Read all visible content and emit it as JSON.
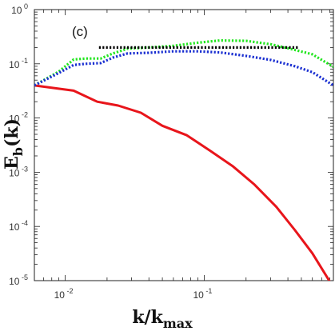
{
  "chart_data": {
    "type": "line",
    "panel_label": "(c)",
    "xlabel": {
      "base": "k/k",
      "sub": "max"
    },
    "ylabel": {
      "base": "E",
      "sub": "b",
      "tail": "(k)"
    },
    "x_scale": "log",
    "y_scale": "log",
    "xlim": [
      0.006,
      0.85
    ],
    "ylim": [
      1e-05,
      1
    ],
    "x_ticks": [
      {
        "value": 0.01,
        "base": "10",
        "exp": "-2"
      },
      {
        "value": 0.1,
        "base": "10",
        "exp": "-1"
      }
    ],
    "y_ticks": [
      {
        "value": 1,
        "base": "10",
        "exp": "0"
      },
      {
        "value": 0.1,
        "base": "10",
        "exp": "-1"
      },
      {
        "value": 0.01,
        "base": "10",
        "exp": "-2"
      },
      {
        "value": 0.001,
        "base": "10",
        "exp": "-3"
      },
      {
        "value": 0.0001,
        "base": "10",
        "exp": "-4"
      },
      {
        "value": 1e-05,
        "base": "10",
        "exp": "-5"
      }
    ],
    "grid": false,
    "series": [
      {
        "color": "#e8151b",
        "style": "solid",
        "x": [
          0.006,
          0.0115,
          0.017,
          0.024,
          0.035,
          0.05,
          0.075,
          0.11,
          0.16,
          0.23,
          0.33,
          0.45,
          0.6,
          0.85
        ],
        "y": [
          0.04,
          0.032,
          0.02,
          0.017,
          0.0125,
          0.0072,
          0.0048,
          0.0025,
          0.0013,
          0.00059,
          0.00023,
          8.5e-05,
          3.2e-05,
          7.5e-06
        ]
      },
      {
        "color": "#22e61f",
        "style": "dotted",
        "x": [
          0.006,
          0.009,
          0.0115,
          0.014,
          0.018,
          0.022,
          0.028,
          0.04,
          0.06,
          0.09,
          0.13,
          0.2,
          0.3,
          0.45,
          0.6,
          0.85
        ],
        "y": [
          0.04,
          0.072,
          0.12,
          0.125,
          0.125,
          0.155,
          0.19,
          0.2,
          0.215,
          0.245,
          0.27,
          0.265,
          0.23,
          0.18,
          0.15,
          0.088
        ]
      },
      {
        "color": "#1a2fd1",
        "style": "dotted",
        "x": [
          0.006,
          0.009,
          0.0115,
          0.014,
          0.018,
          0.022,
          0.028,
          0.04,
          0.06,
          0.09,
          0.13,
          0.2,
          0.3,
          0.45,
          0.6,
          0.85
        ],
        "y": [
          0.04,
          0.068,
          0.095,
          0.1,
          0.103,
          0.13,
          0.155,
          0.16,
          0.17,
          0.17,
          0.162,
          0.14,
          0.118,
          0.09,
          0.07,
          0.04
        ]
      },
      {
        "color": "#000000",
        "style": "dotted",
        "x": [
          0.0175,
          0.48
        ],
        "y": [
          0.2,
          0.2
        ]
      }
    ]
  }
}
